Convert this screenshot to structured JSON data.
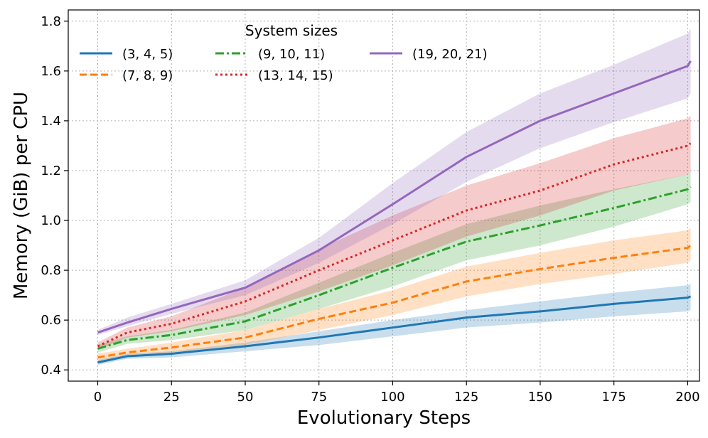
{
  "chart_data": {
    "type": "line",
    "xlabel": "Evolutionary Steps",
    "ylabel": "Memory (GiB) per CPU",
    "xlim": [
      -10,
      204
    ],
    "ylim": [
      0.355,
      1.845
    ],
    "x_ticks": [
      0,
      25,
      50,
      75,
      100,
      125,
      150,
      175,
      200
    ],
    "y_ticks": [
      0.4,
      0.6,
      0.8,
      1.0,
      1.2,
      1.4,
      1.6,
      1.8
    ],
    "y_tick_labels": [
      "0.4",
      "0.6",
      "0.8",
      "1.0",
      "1.2",
      "1.4",
      "1.6",
      "1.8"
    ],
    "grid": true,
    "shaded_band": "spread around each series",
    "legend": {
      "title": "System sizes",
      "placement": "upper-left",
      "columns": 3
    },
    "x": [
      0,
      10,
      25,
      50,
      75,
      100,
      125,
      150,
      175,
      200,
      201
    ],
    "series": [
      {
        "name": "(3, 4, 5)",
        "color": "#1f77b4",
        "style": "solid",
        "values": [
          0.43,
          0.455,
          0.465,
          0.495,
          0.53,
          0.57,
          0.61,
          0.635,
          0.665,
          0.69,
          0.695
        ],
        "lower": [
          0.42,
          0.445,
          0.45,
          0.475,
          0.5,
          0.535,
          0.57,
          0.59,
          0.615,
          0.635,
          0.64
        ],
        "upper": [
          0.44,
          0.465,
          0.475,
          0.51,
          0.555,
          0.6,
          0.64,
          0.675,
          0.71,
          0.74,
          0.745
        ]
      },
      {
        "name": "(7, 8, 9)",
        "color": "#ff7f0e",
        "style": "dashed",
        "values": [
          0.45,
          0.47,
          0.49,
          0.53,
          0.605,
          0.67,
          0.755,
          0.805,
          0.85,
          0.89,
          0.9
        ],
        "lower": [
          0.435,
          0.455,
          0.47,
          0.5,
          0.56,
          0.62,
          0.695,
          0.745,
          0.785,
          0.83,
          0.84
        ],
        "upper": [
          0.465,
          0.485,
          0.51,
          0.56,
          0.645,
          0.72,
          0.815,
          0.87,
          0.92,
          0.96,
          0.97
        ]
      },
      {
        "name": "(9, 10, 11)",
        "color": "#2ca02c",
        "style": "dashdot",
        "values": [
          0.485,
          0.52,
          0.54,
          0.595,
          0.7,
          0.81,
          0.915,
          0.98,
          1.05,
          1.125,
          1.135
        ],
        "lower": [
          0.47,
          0.505,
          0.52,
          0.56,
          0.645,
          0.735,
          0.84,
          0.9,
          0.975,
          1.065,
          1.075
        ],
        "upper": [
          0.5,
          0.535,
          0.56,
          0.63,
          0.75,
          0.87,
          0.985,
          1.06,
          1.125,
          1.185,
          1.195
        ]
      },
      {
        "name": "(13, 14, 15)",
        "color": "#d62728",
        "style": "dotted",
        "values": [
          0.495,
          0.55,
          0.585,
          0.675,
          0.8,
          0.92,
          1.04,
          1.12,
          1.225,
          1.3,
          1.31
        ],
        "lower": [
          0.48,
          0.53,
          0.555,
          0.62,
          0.715,
          0.82,
          0.935,
          1.02,
          1.12,
          1.185,
          1.195
        ],
        "upper": [
          0.51,
          0.57,
          0.615,
          0.73,
          0.885,
          1.02,
          1.14,
          1.23,
          1.33,
          1.41,
          1.42
        ]
      },
      {
        "name": "(19, 20, 21)",
        "color": "#9467bd",
        "style": "solid",
        "values": [
          0.55,
          0.59,
          0.645,
          0.73,
          0.88,
          1.065,
          1.255,
          1.4,
          1.51,
          1.62,
          1.64
        ],
        "lower": [
          0.54,
          0.575,
          0.625,
          0.7,
          0.83,
          0.985,
          1.155,
          1.29,
          1.395,
          1.49,
          1.51
        ],
        "upper": [
          0.56,
          0.61,
          0.665,
          0.76,
          0.93,
          1.15,
          1.355,
          1.51,
          1.625,
          1.75,
          1.77
        ]
      }
    ]
  }
}
